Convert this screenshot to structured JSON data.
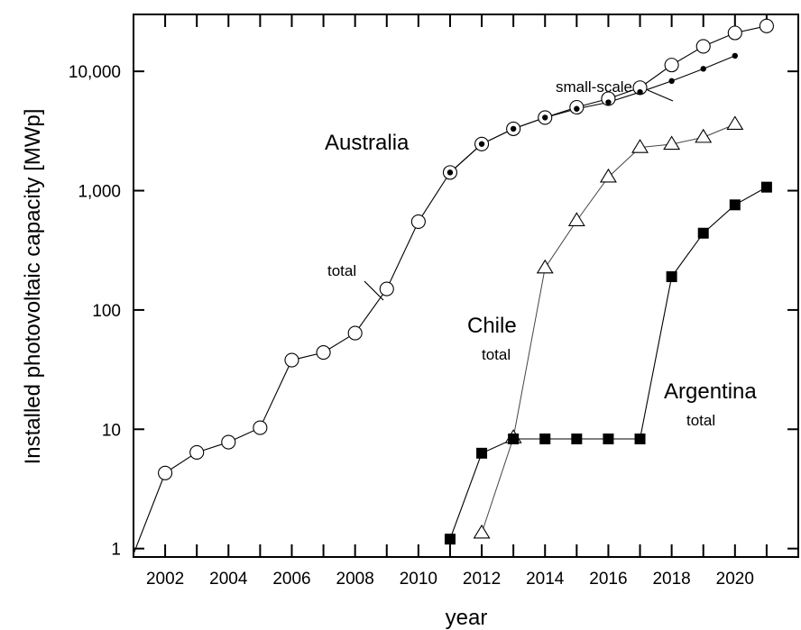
{
  "chart_data": {
    "type": "line",
    "title": "",
    "xlabel": "year",
    "ylabel": "Installed photovoltaic capacity [MWp]",
    "y_scale": "log",
    "xlim": [
      2001,
      2022
    ],
    "ylim": [
      0.85,
      30000
    ],
    "x_ticks": [
      2002,
      2004,
      2006,
      2008,
      2010,
      2012,
      2014,
      2016,
      2018,
      2020
    ],
    "x_tick_labels": [
      "2002",
      "2004",
      "2006",
      "2008",
      "2010",
      "2012",
      "2014",
      "2016",
      "2018",
      "2020"
    ],
    "y_ticks": [
      1,
      10,
      100,
      1000,
      10000
    ],
    "y_tick_labels": [
      "1",
      "10",
      "100",
      "1,000",
      "10,000"
    ],
    "grid": false,
    "legend": "none",
    "series": [
      {
        "key": "aus_total",
        "marker": "open-circle",
        "x": [
          2001,
          2002,
          2003,
          2004,
          2005,
          2006,
          2007,
          2008,
          2009,
          2010,
          2011,
          2012,
          2013,
          2014,
          2015,
          2016,
          2017,
          2018,
          2019,
          2020,
          2021
        ],
        "y": [
          0.9,
          4.3,
          6.4,
          7.8,
          10.3,
          38,
          44,
          64,
          150,
          550,
          1420,
          2460,
          3300,
          4100,
          5000,
          5900,
          7300,
          11300,
          16200,
          21000,
          24000
        ]
      },
      {
        "key": "aus_small_scale",
        "marker": "small-dot",
        "x": [
          2011,
          2012,
          2013,
          2014,
          2015,
          2016,
          2017,
          2018,
          2019,
          2020
        ],
        "y": [
          1420,
          2460,
          3300,
          4100,
          4850,
          5500,
          6700,
          8300,
          10500,
          13500
        ]
      },
      {
        "key": "chile_total",
        "marker": "open-triangle",
        "x": [
          2012,
          2013,
          2014,
          2015,
          2016,
          2017,
          2018,
          2019,
          2020
        ],
        "y": [
          1.35,
          8.5,
          225,
          560,
          1300,
          2300,
          2450,
          2800,
          3600
        ]
      },
      {
        "key": "argentina_total",
        "marker": "filled-square",
        "x": [
          2011,
          2012,
          2013,
          2014,
          2015,
          2016,
          2017,
          2018,
          2019,
          2020,
          2021
        ],
        "y": [
          1.2,
          6.3,
          8.3,
          8.3,
          8.3,
          8.3,
          8.3,
          190,
          440,
          760,
          1070
        ]
      }
    ],
    "annotations": {
      "australia": "Australia",
      "small_scale": "small-scale",
      "total_aus": "total",
      "chile": "Chile",
      "chile_total": "total",
      "argentina": "Argentina",
      "argentina_total": "total"
    }
  }
}
